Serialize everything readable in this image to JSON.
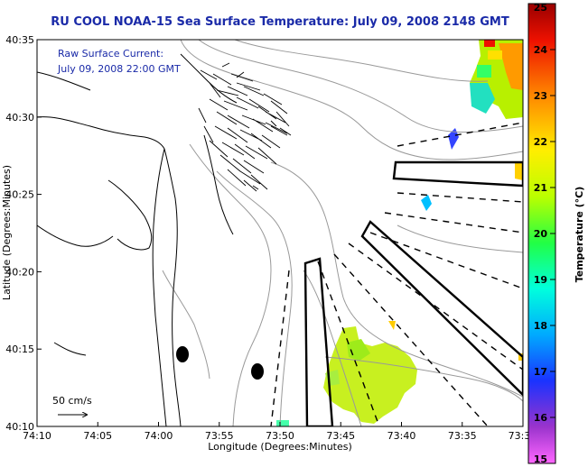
{
  "title": "RU COOL  NOAA-15  Sea Surface Temperature:  July 09, 2008 2148 GMT",
  "annotation": {
    "line1": "Raw Surface Current:",
    "line2": "July 09, 2008 22:00 GMT"
  },
  "scale_label": "50 cm/s",
  "chart_data": {
    "type": "map",
    "xlabel": "Longitude (Degrees:Minutes)",
    "ylabel": "Latitude (Degrees:Minutes)",
    "x_ticks": [
      "74:10",
      "74:05",
      "74:00",
      "73:55",
      "73:50",
      "73:45",
      "73:40",
      "73:35",
      "73:3"
    ],
    "y_ticks": [
      "40:35",
      "40:30",
      "40:25",
      "40:20",
      "40:15",
      "40:10"
    ],
    "colorbar": {
      "label": "Temperature (°C)",
      "min": 15,
      "max": 25,
      "ticks": [
        "25",
        "24",
        "23",
        "22",
        "21",
        "20",
        "19",
        "18",
        "17",
        "16",
        "15"
      ],
      "colors": [
        "#ff00ff",
        "#7b22cc",
        "#1f3bff",
        "#00b4ff",
        "#00ffe0",
        "#19ff4a",
        "#b8ff00",
        "#ffee00",
        "#ff9900",
        "#ff2a00",
        "#990000"
      ]
    }
  }
}
